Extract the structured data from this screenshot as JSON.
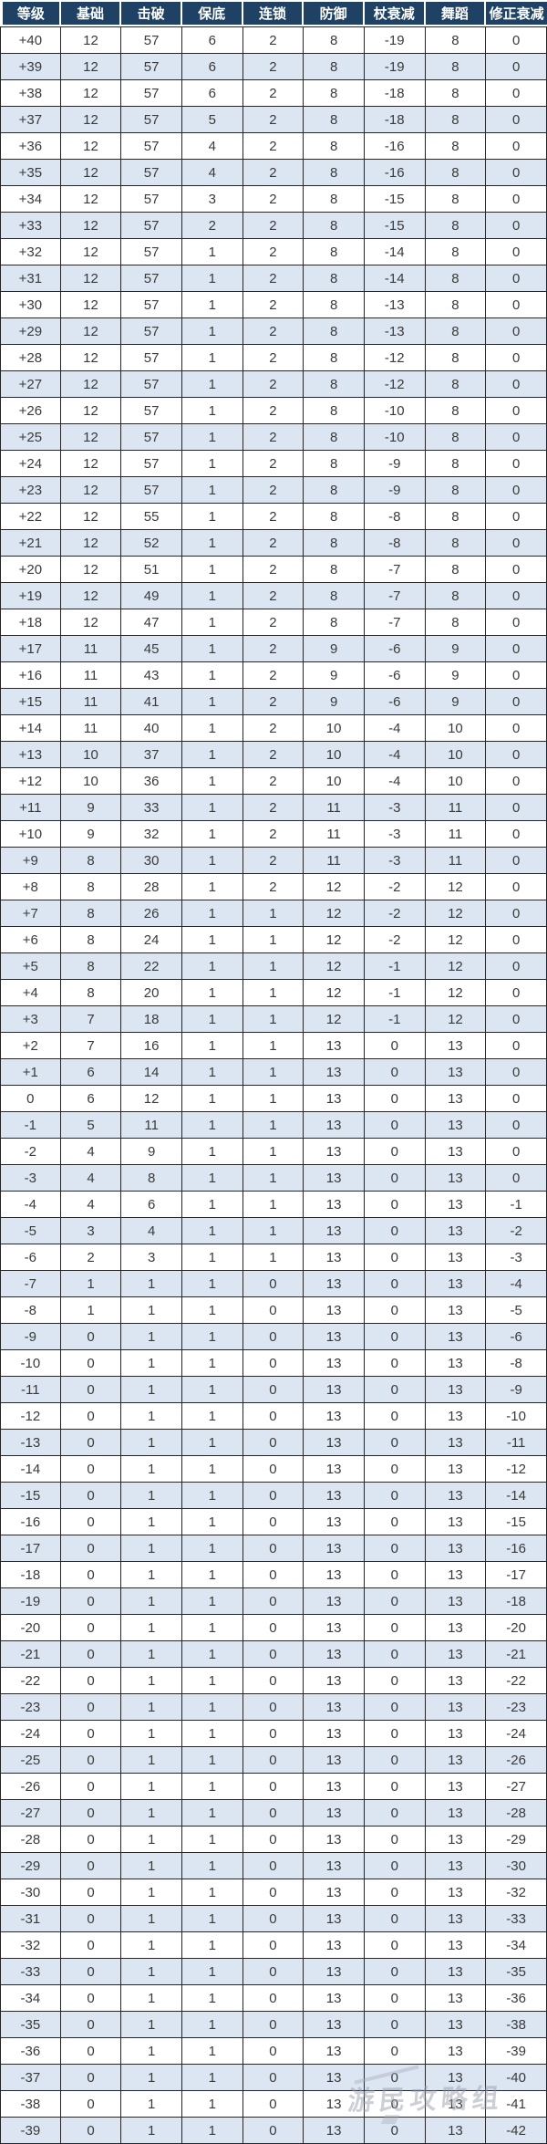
{
  "table": {
    "headers": [
      "等级",
      "基础",
      "击破",
      "保底",
      "连锁",
      "防御",
      "杖衰减",
      "舞蹈",
      "修正衰减"
    ],
    "rows": [
      [
        "+40",
        "12",
        "57",
        "6",
        "2",
        "8",
        "-19",
        "8",
        "0"
      ],
      [
        "+39",
        "12",
        "57",
        "6",
        "2",
        "8",
        "-19",
        "8",
        "0"
      ],
      [
        "+38",
        "12",
        "57",
        "6",
        "2",
        "8",
        "-18",
        "8",
        "0"
      ],
      [
        "+37",
        "12",
        "57",
        "5",
        "2",
        "8",
        "-18",
        "8",
        "0"
      ],
      [
        "+36",
        "12",
        "57",
        "4",
        "2",
        "8",
        "-16",
        "8",
        "0"
      ],
      [
        "+35",
        "12",
        "57",
        "4",
        "2",
        "8",
        "-16",
        "8",
        "0"
      ],
      [
        "+34",
        "12",
        "57",
        "3",
        "2",
        "8",
        "-15",
        "8",
        "0"
      ],
      [
        "+33",
        "12",
        "57",
        "2",
        "2",
        "8",
        "-15",
        "8",
        "0"
      ],
      [
        "+32",
        "12",
        "57",
        "1",
        "2",
        "8",
        "-14",
        "8",
        "0"
      ],
      [
        "+31",
        "12",
        "57",
        "1",
        "2",
        "8",
        "-14",
        "8",
        "0"
      ],
      [
        "+30",
        "12",
        "57",
        "1",
        "2",
        "8",
        "-13",
        "8",
        "0"
      ],
      [
        "+29",
        "12",
        "57",
        "1",
        "2",
        "8",
        "-13",
        "8",
        "0"
      ],
      [
        "+28",
        "12",
        "57",
        "1",
        "2",
        "8",
        "-12",
        "8",
        "0"
      ],
      [
        "+27",
        "12",
        "57",
        "1",
        "2",
        "8",
        "-12",
        "8",
        "0"
      ],
      [
        "+26",
        "12",
        "57",
        "1",
        "2",
        "8",
        "-10",
        "8",
        "0"
      ],
      [
        "+25",
        "12",
        "57",
        "1",
        "2",
        "8",
        "-10",
        "8",
        "0"
      ],
      [
        "+24",
        "12",
        "57",
        "1",
        "2",
        "8",
        "-9",
        "8",
        "0"
      ],
      [
        "+23",
        "12",
        "57",
        "1",
        "2",
        "8",
        "-9",
        "8",
        "0"
      ],
      [
        "+22",
        "12",
        "55",
        "1",
        "2",
        "8",
        "-8",
        "8",
        "0"
      ],
      [
        "+21",
        "12",
        "52",
        "1",
        "2",
        "8",
        "-8",
        "8",
        "0"
      ],
      [
        "+20",
        "12",
        "51",
        "1",
        "2",
        "8",
        "-7",
        "8",
        "0"
      ],
      [
        "+19",
        "12",
        "49",
        "1",
        "2",
        "8",
        "-7",
        "8",
        "0"
      ],
      [
        "+18",
        "12",
        "47",
        "1",
        "2",
        "8",
        "-7",
        "8",
        "0"
      ],
      [
        "+17",
        "11",
        "45",
        "1",
        "2",
        "9",
        "-6",
        "9",
        "0"
      ],
      [
        "+16",
        "11",
        "43",
        "1",
        "2",
        "9",
        "-6",
        "9",
        "0"
      ],
      [
        "+15",
        "11",
        "41",
        "1",
        "2",
        "9",
        "-6",
        "9",
        "0"
      ],
      [
        "+14",
        "11",
        "40",
        "1",
        "2",
        "10",
        "-4",
        "10",
        "0"
      ],
      [
        "+13",
        "10",
        "37",
        "1",
        "2",
        "10",
        "-4",
        "10",
        "0"
      ],
      [
        "+12",
        "10",
        "36",
        "1",
        "2",
        "10",
        "-4",
        "10",
        "0"
      ],
      [
        "+11",
        "9",
        "33",
        "1",
        "2",
        "11",
        "-3",
        "11",
        "0"
      ],
      [
        "+10",
        "9",
        "32",
        "1",
        "2",
        "11",
        "-3",
        "11",
        "0"
      ],
      [
        "+9",
        "8",
        "30",
        "1",
        "2",
        "11",
        "-3",
        "11",
        "0"
      ],
      [
        "+8",
        "8",
        "28",
        "1",
        "2",
        "12",
        "-2",
        "12",
        "0"
      ],
      [
        "+7",
        "8",
        "26",
        "1",
        "1",
        "12",
        "-2",
        "12",
        "0"
      ],
      [
        "+6",
        "8",
        "24",
        "1",
        "1",
        "12",
        "-2",
        "12",
        "0"
      ],
      [
        "+5",
        "8",
        "22",
        "1",
        "1",
        "12",
        "-1",
        "12",
        "0"
      ],
      [
        "+4",
        "8",
        "20",
        "1",
        "1",
        "12",
        "-1",
        "12",
        "0"
      ],
      [
        "+3",
        "7",
        "18",
        "1",
        "1",
        "12",
        "-1",
        "12",
        "0"
      ],
      [
        "+2",
        "7",
        "16",
        "1",
        "1",
        "13",
        "0",
        "13",
        "0"
      ],
      [
        "+1",
        "6",
        "14",
        "1",
        "1",
        "13",
        "0",
        "13",
        "0"
      ],
      [
        "0",
        "6",
        "12",
        "1",
        "1",
        "13",
        "0",
        "13",
        "0"
      ],
      [
        "-1",
        "5",
        "11",
        "1",
        "1",
        "13",
        "0",
        "13",
        "0"
      ],
      [
        "-2",
        "4",
        "9",
        "1",
        "1",
        "13",
        "0",
        "13",
        "0"
      ],
      [
        "-3",
        "4",
        "8",
        "1",
        "1",
        "13",
        "0",
        "13",
        "0"
      ],
      [
        "-4",
        "4",
        "6",
        "1",
        "1",
        "13",
        "0",
        "13",
        "-1"
      ],
      [
        "-5",
        "3",
        "4",
        "1",
        "1",
        "13",
        "0",
        "13",
        "-2"
      ],
      [
        "-6",
        "2",
        "3",
        "1",
        "1",
        "13",
        "0",
        "13",
        "-3"
      ],
      [
        "-7",
        "1",
        "1",
        "1",
        "0",
        "13",
        "0",
        "13",
        "-4"
      ],
      [
        "-8",
        "1",
        "1",
        "1",
        "0",
        "13",
        "0",
        "13",
        "-5"
      ],
      [
        "-9",
        "0",
        "1",
        "1",
        "0",
        "13",
        "0",
        "13",
        "-6"
      ],
      [
        "-10",
        "0",
        "1",
        "1",
        "0",
        "13",
        "0",
        "13",
        "-8"
      ],
      [
        "-11",
        "0",
        "1",
        "1",
        "0",
        "13",
        "0",
        "13",
        "-9"
      ],
      [
        "-12",
        "0",
        "1",
        "1",
        "0",
        "13",
        "0",
        "13",
        "-10"
      ],
      [
        "-13",
        "0",
        "1",
        "1",
        "0",
        "13",
        "0",
        "13",
        "-11"
      ],
      [
        "-14",
        "0",
        "1",
        "1",
        "0",
        "13",
        "0",
        "13",
        "-12"
      ],
      [
        "-15",
        "0",
        "1",
        "1",
        "0",
        "13",
        "0",
        "13",
        "-14"
      ],
      [
        "-16",
        "0",
        "1",
        "1",
        "0",
        "13",
        "0",
        "13",
        "-15"
      ],
      [
        "-17",
        "0",
        "1",
        "1",
        "0",
        "13",
        "0",
        "13",
        "-16"
      ],
      [
        "-18",
        "0",
        "1",
        "1",
        "0",
        "13",
        "0",
        "13",
        "-17"
      ],
      [
        "-19",
        "0",
        "1",
        "1",
        "0",
        "13",
        "0",
        "13",
        "-18"
      ],
      [
        "-20",
        "0",
        "1",
        "1",
        "0",
        "13",
        "0",
        "13",
        "-20"
      ],
      [
        "-21",
        "0",
        "1",
        "1",
        "0",
        "13",
        "0",
        "13",
        "-21"
      ],
      [
        "-22",
        "0",
        "1",
        "1",
        "0",
        "13",
        "0",
        "13",
        "-22"
      ],
      [
        "-23",
        "0",
        "1",
        "1",
        "0",
        "13",
        "0",
        "13",
        "-23"
      ],
      [
        "-24",
        "0",
        "1",
        "1",
        "0",
        "13",
        "0",
        "13",
        "-24"
      ],
      [
        "-25",
        "0",
        "1",
        "1",
        "0",
        "13",
        "0",
        "13",
        "-26"
      ],
      [
        "-26",
        "0",
        "1",
        "1",
        "0",
        "13",
        "0",
        "13",
        "-27"
      ],
      [
        "-27",
        "0",
        "1",
        "1",
        "0",
        "13",
        "0",
        "13",
        "-28"
      ],
      [
        "-28",
        "0",
        "1",
        "1",
        "0",
        "13",
        "0",
        "13",
        "-29"
      ],
      [
        "-29",
        "0",
        "1",
        "1",
        "0",
        "13",
        "0",
        "13",
        "-30"
      ],
      [
        "-30",
        "0",
        "1",
        "1",
        "0",
        "13",
        "0",
        "13",
        "-32"
      ],
      [
        "-31",
        "0",
        "1",
        "1",
        "0",
        "13",
        "0",
        "13",
        "-33"
      ],
      [
        "-32",
        "0",
        "1",
        "1",
        "0",
        "13",
        "0",
        "13",
        "-34"
      ],
      [
        "-33",
        "0",
        "1",
        "1",
        "0",
        "13",
        "0",
        "13",
        "-35"
      ],
      [
        "-34",
        "0",
        "1",
        "1",
        "0",
        "13",
        "0",
        "13",
        "-36"
      ],
      [
        "-35",
        "0",
        "1",
        "1",
        "0",
        "13",
        "0",
        "13",
        "-38"
      ],
      [
        "-36",
        "0",
        "1",
        "1",
        "0",
        "13",
        "0",
        "13",
        "-39"
      ],
      [
        "-37",
        "0",
        "1",
        "1",
        "0",
        "13",
        "0",
        "13",
        "-40"
      ],
      [
        "-38",
        "0",
        "1",
        "1",
        "0",
        "13",
        "0",
        "13",
        "-41"
      ],
      [
        "-39",
        "0",
        "1",
        "1",
        "0",
        "13",
        "0",
        "13",
        "-42"
      ]
    ]
  },
  "watermark": {
    "text": "游民攻略组"
  },
  "colors": {
    "header_bg": "#1e4164",
    "header_text": "#ffffff",
    "row_alt_bg": "#dbe6f2",
    "row_bg": "#ffffff",
    "border": "#262626",
    "body_text": "#3a3a3a"
  }
}
